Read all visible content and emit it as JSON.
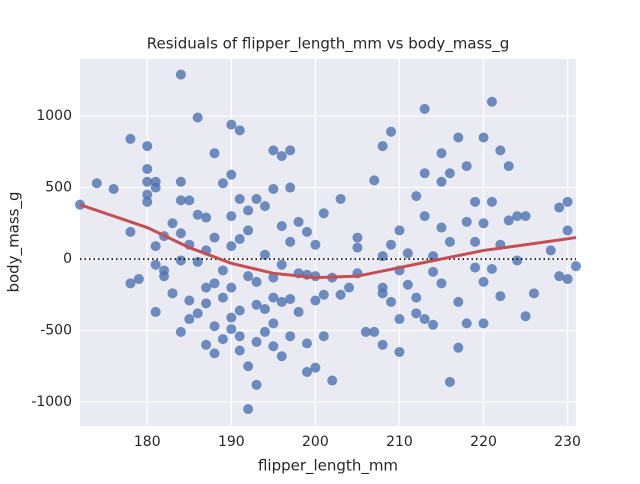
{
  "chart_data": {
    "type": "scatter",
    "title": "Residuals of flipper_length_mm vs body_mass_g",
    "xlabel": "flipper_length_mm",
    "ylabel": "body_mass_g",
    "xlim": [
      172,
      231
    ],
    "ylim": [
      -1168,
      1399
    ],
    "xticks": [
      180,
      190,
      200,
      210,
      220,
      230
    ],
    "yticks": [
      -1000,
      -500,
      0,
      500,
      1000
    ],
    "grid": true,
    "refline": 0,
    "points": {
      "color": "#4c72b0",
      "x": [
        172,
        174,
        176,
        178,
        178,
        178,
        179,
        180,
        180,
        180,
        180,
        180,
        181,
        181,
        181,
        181,
        181,
        182,
        182,
        182,
        183,
        183,
        184,
        184,
        184,
        184,
        184,
        184,
        185,
        185,
        185,
        185,
        186,
        186,
        186,
        186,
        187,
        187,
        187,
        187,
        187,
        188,
        188,
        188,
        188,
        188,
        189,
        189,
        189,
        189,
        190,
        190,
        190,
        190,
        190,
        190,
        190,
        191,
        191,
        191,
        191,
        191,
        191,
        192,
        192,
        192,
        192,
        192,
        193,
        193,
        193,
        193,
        193,
        194,
        194,
        194,
        194,
        195,
        195,
        195,
        195,
        195,
        195,
        196,
        196,
        196,
        196,
        196,
        197,
        197,
        197,
        197,
        197,
        198,
        198,
        198,
        199,
        199,
        199,
        199,
        200,
        200,
        200,
        200,
        201,
        201,
        201,
        202,
        202,
        203,
        203,
        204,
        205,
        205,
        205,
        206,
        207,
        207,
        208,
        208,
        208,
        208,
        208,
        209,
        209,
        209,
        210,
        210,
        210,
        210,
        211,
        211,
        212,
        212,
        212,
        213,
        213,
        213,
        213,
        214,
        214,
        214,
        215,
        215,
        215,
        215,
        216,
        216,
        216,
        217,
        217,
        217,
        218,
        218,
        218,
        219,
        219,
        219,
        220,
        220,
        220,
        220,
        221,
        221,
        221,
        222,
        222,
        222,
        223,
        223,
        224,
        224,
        225,
        225,
        226,
        228,
        229,
        229,
        230,
        230,
        230,
        231
      ],
      "y": [
        380,
        530,
        490,
        840,
        190,
        -170,
        -140,
        790,
        630,
        540,
        450,
        400,
        500,
        -370,
        -40,
        90,
        540,
        160,
        -80,
        -120,
        -240,
        250,
        1290,
        540,
        410,
        180,
        -510,
        -10,
        410,
        100,
        -290,
        -420,
        990,
        310,
        -380,
        -20,
        290,
        60,
        -200,
        -600,
        -310,
        740,
        150,
        -170,
        -470,
        -660,
        530,
        -80,
        -270,
        -560,
        940,
        590,
        300,
        90,
        -200,
        -410,
        -490,
        900,
        420,
        140,
        -360,
        -640,
        -540,
        340,
        200,
        -120,
        -750,
        -1050,
        420,
        -320,
        -880,
        -580,
        -160,
        370,
        30,
        -350,
        -510,
        760,
        490,
        -130,
        -450,
        -610,
        -270,
        720,
        230,
        -40,
        -300,
        -680,
        760,
        500,
        120,
        -280,
        -540,
        260,
        -100,
        -370,
        190,
        -110,
        -790,
        -590,
        -760,
        -120,
        -290,
        100,
        320,
        -540,
        -250,
        -850,
        -130,
        420,
        -250,
        -200,
        150,
        80,
        -100,
        -510,
        -510,
        550,
        -600,
        790,
        20,
        -200,
        -240,
        890,
        100,
        -300,
        -420,
        -650,
        200,
        -80,
        40,
        -180,
        440,
        -270,
        -380,
        1050,
        600,
        300,
        -420,
        -460,
        -90,
        20,
        740,
        540,
        220,
        -170,
        600,
        -860,
        120,
        850,
        -620,
        -300,
        650,
        260,
        -450,
        400,
        -60,
        120,
        850,
        250,
        -450,
        -160,
        1100,
        400,
        -70,
        760,
        100,
        -260,
        650,
        270,
        300,
        -10,
        300,
        -400,
        -240,
        60,
        360,
        -120,
        400,
        200,
        -140,
        -50
      ]
    },
    "fit_line": {
      "color": "#c44e52",
      "x": [
        172,
        176,
        180,
        185,
        190,
        195,
        200,
        205,
        210,
        215,
        220,
        225,
        231
      ],
      "y": [
        380,
        300,
        220,
        80,
        -30,
        -100,
        -130,
        -120,
        -60,
        0,
        60,
        100,
        150
      ]
    }
  }
}
